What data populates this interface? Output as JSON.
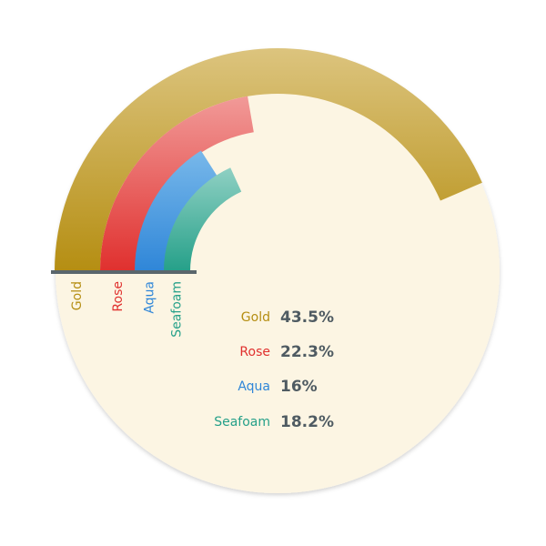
{
  "chart_data": {
    "type": "radial-bar",
    "categories": [
      "Gold",
      "Rose",
      "Aqua",
      "Seafoam"
    ],
    "values": [
      43.5,
      22.3,
      16,
      18.2
    ],
    "value_labels": [
      "43.5%",
      "22.3%",
      "16%",
      "18.2%"
    ],
    "unit": "%",
    "max_value": 50,
    "title": "",
    "grid": false,
    "legend_placement": "center",
    "colors": {
      "Gold": {
        "top": "#dcc47e",
        "bottom": "#b58e12"
      },
      "Rose": {
        "top": "#f19a98",
        "bottom": "#e0302e"
      },
      "Aqua": {
        "top": "#78b8ea",
        "bottom": "#2f86d8"
      },
      "Seafoam": {
        "top": "#8fd0c3",
        "bottom": "#25a089"
      }
    },
    "background_color": "#fcf5e3",
    "baseline_color": "#5a666c",
    "value_text_color": "#4f5b62"
  }
}
